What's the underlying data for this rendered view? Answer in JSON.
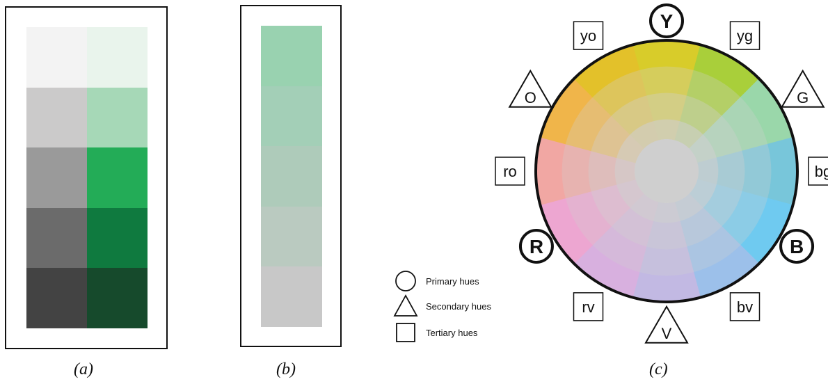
{
  "panel_a": {
    "caption": "(a)",
    "gray_column": [
      "#f3f3f3",
      "#cbcaca",
      "#9a9a9a",
      "#6b6b6b",
      "#434343"
    ],
    "green_column": [
      "#e9f4ec",
      "#a6d8b7",
      "#23ac57",
      "#0f7a3f",
      "#164a2c"
    ]
  },
  "panel_b": {
    "caption": "(b)",
    "column": [
      "#99d2b0",
      "#a3cfb7",
      "#aecbba",
      "#bacac0",
      "#c8c8c8"
    ]
  },
  "panel_c": {
    "caption": "(c)",
    "center_color": "#cfcfcf",
    "hues": [
      {
        "label": "Y",
        "kind": "primary",
        "color": "#d8cc2a"
      },
      {
        "label": "yg",
        "kind": "tertiary",
        "color": "#a9cf3a"
      },
      {
        "label": "G",
        "kind": "secondary",
        "color": "#9ad7aa"
      },
      {
        "label": "bg",
        "kind": "tertiary",
        "color": "#78c6da"
      },
      {
        "label": "B",
        "kind": "primary",
        "color": "#6fcaf0"
      },
      {
        "label": "bv",
        "kind": "tertiary",
        "color": "#9cc0ea"
      },
      {
        "label": "V",
        "kind": "secondary",
        "color": "#c2b9e3"
      },
      {
        "label": "rv",
        "kind": "tertiary",
        "color": "#d8b0df"
      },
      {
        "label": "R",
        "kind": "primary",
        "color": "#eda6d1"
      },
      {
        "label": "ro",
        "kind": "tertiary",
        "color": "#f1a7a3"
      },
      {
        "label": "O",
        "kind": "secondary",
        "color": "#f0b54a"
      },
      {
        "label": "yo",
        "kind": "tertiary",
        "color": "#e3c12a"
      }
    ]
  },
  "legend": {
    "primary": "Primary hues",
    "secondary": "Secondary hues",
    "tertiary": "Tertiary hues"
  }
}
